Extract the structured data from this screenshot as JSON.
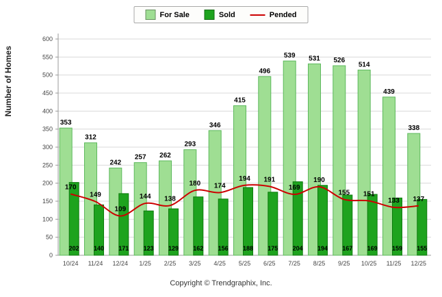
{
  "legend": {
    "for_sale": "For Sale",
    "sold": "Sold",
    "pended": "Pended"
  },
  "ylabel": "Number of Homes",
  "footer": "Copyright © Trendgraphix, Inc.",
  "colors": {
    "for_sale": "#9FDE93",
    "for_sale_border": "#5cb85c",
    "sold": "#1EA31E",
    "sold_border": "#0d7a0d",
    "pended": "#CC0000",
    "grid": "#d9d9d9",
    "axis": "#999999",
    "axis_text": "#444444",
    "label_text": "#000000"
  },
  "chart_data": {
    "type": "bar",
    "categories": [
      "10/24",
      "11/24",
      "12/24",
      "1/25",
      "2/25",
      "3/25",
      "4/25",
      "5/25",
      "6/25",
      "7/25",
      "8/25",
      "9/25",
      "10/25",
      "11/25",
      "12/25"
    ],
    "series": [
      {
        "name": "For Sale",
        "type": "bar",
        "values": [
          353,
          312,
          242,
          257,
          262,
          293,
          346,
          415,
          496,
          539,
          531,
          526,
          514,
          439,
          338
        ]
      },
      {
        "name": "Sold",
        "type": "bar",
        "values": [
          202,
          140,
          171,
          123,
          129,
          162,
          156,
          188,
          175,
          204,
          194,
          167,
          169,
          159,
          155
        ]
      },
      {
        "name": "Pended",
        "type": "line",
        "values": [
          170,
          149,
          109,
          144,
          138,
          180,
          174,
          194,
          191,
          169,
          190,
          155,
          151,
          133,
          137
        ]
      }
    ],
    "ylim": [
      0,
      600
    ],
    "ytick_step": 50,
    "grid": true,
    "legend_position": "top"
  }
}
